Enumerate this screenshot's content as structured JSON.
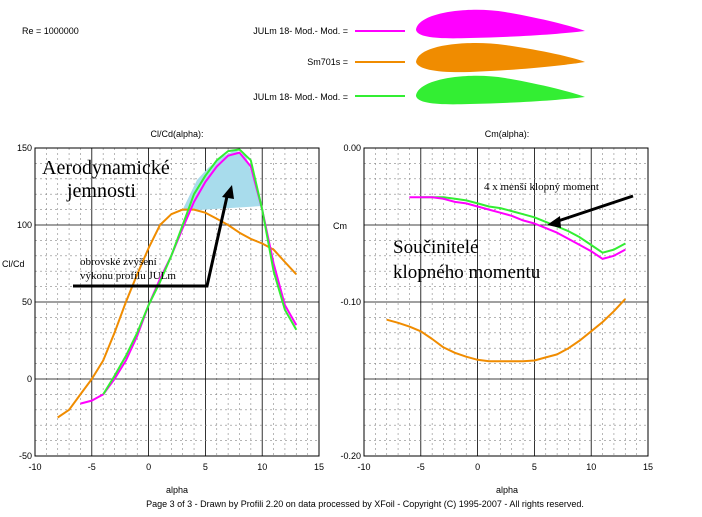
{
  "header": {
    "reynolds": "Re = 1000000"
  },
  "legend": [
    {
      "label": "JULm 18- Mod.- Mod. =",
      "color": "#ff00ff"
    },
    {
      "label": "Sm701s =",
      "color": "#f08c00"
    },
    {
      "label": "JULm 18- Mod.- Mod. =",
      "color": "#33ee33"
    }
  ],
  "footer": "Page 3 of 3  -   Drawn by Profili 2.20 on data processed by  XFoil - Copyright (C) 1995-2007 - All rights reserved.",
  "chart_data": [
    {
      "type": "line",
      "title": "Cl/Cd(alpha):",
      "xlabel": "alpha",
      "ylabel": "Cl/Cd",
      "xlim": [
        -10,
        15
      ],
      "ylim": [
        -50,
        150
      ],
      "x_ticks": [
        "-10",
        "-5",
        "0",
        "5",
        "10",
        "15"
      ],
      "y_ticks": [
        "150",
        "100",
        "50",
        "0",
        "-50"
      ],
      "grid": true,
      "series": [
        {
          "color": "#f08c00",
          "x": [
            -8,
            -7,
            -6,
            -5,
            -4,
            -3,
            -2,
            -1,
            0,
            1,
            2,
            3,
            4,
            5,
            6,
            7,
            8,
            9,
            10,
            11,
            12,
            13
          ],
          "y": [
            -25,
            -20,
            -10,
            0,
            12,
            30,
            50,
            68,
            85,
            100,
            107,
            110,
            110,
            108,
            104,
            100,
            95,
            91,
            88,
            84,
            76,
            68
          ]
        },
        {
          "color": "#ff00ff",
          "x": [
            -6,
            -5,
            -4,
            -3,
            -2,
            -1,
            0,
            1,
            2,
            3,
            4,
            5,
            6,
            7,
            8,
            9,
            10,
            11,
            12,
            13
          ],
          "y": [
            -16,
            -14,
            -10,
            0,
            12,
            28,
            48,
            65,
            80,
            98,
            115,
            128,
            138,
            145,
            147,
            138,
            110,
            75,
            48,
            35
          ]
        },
        {
          "color": "#33ee33",
          "x": [
            -4,
            -3,
            -2,
            -1,
            0,
            1,
            2,
            3,
            4,
            5,
            6,
            7,
            8,
            9,
            10,
            11,
            12,
            13
          ],
          "y": [
            -10,
            2,
            15,
            30,
            48,
            63,
            80,
            100,
            120,
            132,
            142,
            148,
            149,
            142,
            110,
            70,
            45,
            32
          ]
        }
      ],
      "annotations": [
        {
          "text": "Aerodynamické",
          "style": "title"
        },
        {
          "text": "jemnosti",
          "style": "title"
        },
        {
          "text": "obrovské zvýšení",
          "style": "note"
        },
        {
          "text": "výkonu profilu JULm",
          "style": "note"
        }
      ]
    },
    {
      "type": "line",
      "title": "Cm(alpha):",
      "xlabel": "alpha",
      "ylabel": "Cm",
      "xlim": [
        -10,
        15
      ],
      "ylim": [
        -0.2,
        0.0
      ],
      "x_ticks": [
        "-10",
        "-5",
        "0",
        "5",
        "10",
        "15"
      ],
      "y_ticks": [
        "0.00",
        "-0.10",
        "-0.20"
      ],
      "grid": true,
      "series": [
        {
          "color": "#f08c00",
          "x": [
            -8,
            -7,
            -6,
            -5,
            -4,
            -3,
            -2,
            -1,
            0,
            1,
            2,
            3,
            4,
            5,
            6,
            7,
            8,
            9,
            10,
            11,
            12,
            13
          ],
          "y": [
            -0.1115,
            -0.1135,
            -0.116,
            -0.119,
            -0.124,
            -0.1295,
            -0.133,
            -0.1355,
            -0.1375,
            -0.1385,
            -0.1385,
            -0.1385,
            -0.1385,
            -0.138,
            -0.136,
            -0.134,
            -0.13,
            -0.125,
            -0.119,
            -0.113,
            -0.106,
            -0.098
          ]
        },
        {
          "color": "#33ee33",
          "x": [
            -5,
            -4,
            -3,
            -2,
            -1,
            0,
            1,
            2,
            3,
            4,
            5,
            6,
            7,
            8,
            9,
            10,
            11,
            12,
            13
          ],
          "y": [
            -0.032,
            -0.032,
            -0.032,
            -0.033,
            -0.034,
            -0.036,
            -0.038,
            -0.039,
            -0.041,
            -0.043,
            -0.045,
            -0.048,
            -0.051,
            -0.054,
            -0.058,
            -0.063,
            -0.068,
            -0.066,
            -0.062
          ]
        },
        {
          "color": "#ff00ff",
          "x": [
            -6,
            -5,
            -4,
            -3,
            -2,
            -1,
            0,
            1,
            2,
            3,
            4,
            5,
            6,
            7,
            8,
            9,
            10,
            11,
            12,
            13
          ],
          "y": [
            -0.032,
            -0.032,
            -0.032,
            -0.033,
            -0.035,
            -0.036,
            -0.038,
            -0.04,
            -0.042,
            -0.044,
            -0.047,
            -0.049,
            -0.052,
            -0.055,
            -0.059,
            -0.063,
            -0.067,
            -0.072,
            -0.07,
            -0.066
          ]
        }
      ],
      "annotations": [
        {
          "text": "4 x menší klopný moment",
          "style": "note"
        },
        {
          "text": "Součinitelé",
          "style": "title"
        },
        {
          "text": "klopného momentu",
          "style": "title"
        }
      ]
    }
  ]
}
